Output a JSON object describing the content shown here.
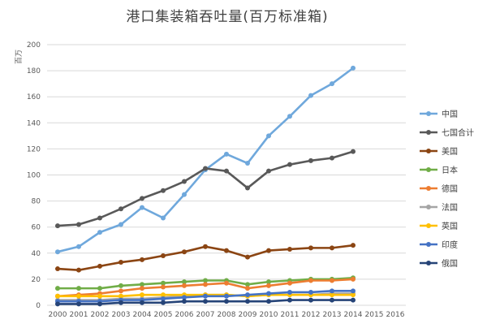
{
  "chart_data": {
    "type": "line",
    "title": "港口集装箱吞吐量(百万标准箱)",
    "ylabel": "百万",
    "xlabel": "",
    "ylim": [
      0,
      200
    ],
    "yticks": [
      0,
      20,
      40,
      60,
      80,
      100,
      120,
      140,
      160,
      180,
      200
    ],
    "grid": true,
    "legend_position": "right",
    "x": [
      "2000",
      "2001",
      "2002",
      "2003",
      "2004",
      "2005",
      "2006",
      "2007",
      "2008",
      "2009",
      "2010",
      "2011",
      "2012",
      "2013",
      "2014",
      "2015",
      "2016"
    ],
    "x_tick_labels": [
      "2000",
      "2001",
      "2002",
      "2003",
      "2004",
      "2005",
      "2006",
      "2007",
      "2008",
      "2009",
      "2010",
      "2011",
      "2012",
      "2013",
      "2014",
      "2015",
      "2016"
    ],
    "series": [
      {
        "name": "中国",
        "color": "#6fa8dc",
        "values": [
          41,
          45,
          56,
          62,
          75,
          67,
          85,
          104,
          116,
          109,
          130,
          145,
          161,
          170,
          182,
          null,
          null
        ]
      },
      {
        "name": "七国合计",
        "color": "#595959",
        "values": [
          61,
          62,
          67,
          74,
          82,
          88,
          95,
          105,
          103,
          90,
          103,
          108,
          111,
          113,
          118,
          null,
          null
        ]
      },
      {
        "name": "美国",
        "color": "#8b4513",
        "values": [
          28,
          27,
          30,
          33,
          35,
          38,
          41,
          45,
          42,
          37,
          42,
          43,
          44,
          44,
          46,
          null,
          null
        ]
      },
      {
        "name": "日本",
        "color": "#70ad47",
        "values": [
          13,
          13,
          13,
          15,
          16,
          17,
          18,
          19,
          19,
          16,
          18,
          19,
          20,
          20,
          21,
          null,
          null
        ]
      },
      {
        "name": "德国",
        "color": "#ed7d31",
        "values": [
          7,
          8,
          9,
          11,
          13,
          14,
          15,
          16,
          17,
          13,
          15,
          17,
          19,
          19,
          20,
          null,
          null
        ]
      },
      {
        "name": "法国",
        "color": "#a5a5a5",
        "values": [
          4,
          4,
          4,
          5,
          5,
          6,
          7,
          8,
          8,
          7,
          8,
          8,
          8,
          9,
          9,
          null,
          null
        ]
      },
      {
        "name": "英国",
        "color": "#ffc000",
        "values": [
          7,
          7,
          7,
          7,
          8,
          8,
          8,
          8,
          8,
          7,
          8,
          8,
          8,
          8,
          8,
          null,
          null
        ]
      },
      {
        "name": "印度",
        "color": "#4472c4",
        "values": [
          3,
          3,
          3,
          4,
          4,
          5,
          6,
          7,
          7,
          8,
          9,
          10,
          10,
          11,
          11,
          null,
          null
        ]
      },
      {
        "name": "俄国",
        "color": "#264478",
        "values": [
          1,
          1,
          1,
          2,
          2,
          2,
          3,
          3,
          3,
          3,
          3,
          4,
          4,
          4,
          4,
          null,
          null
        ]
      }
    ]
  }
}
